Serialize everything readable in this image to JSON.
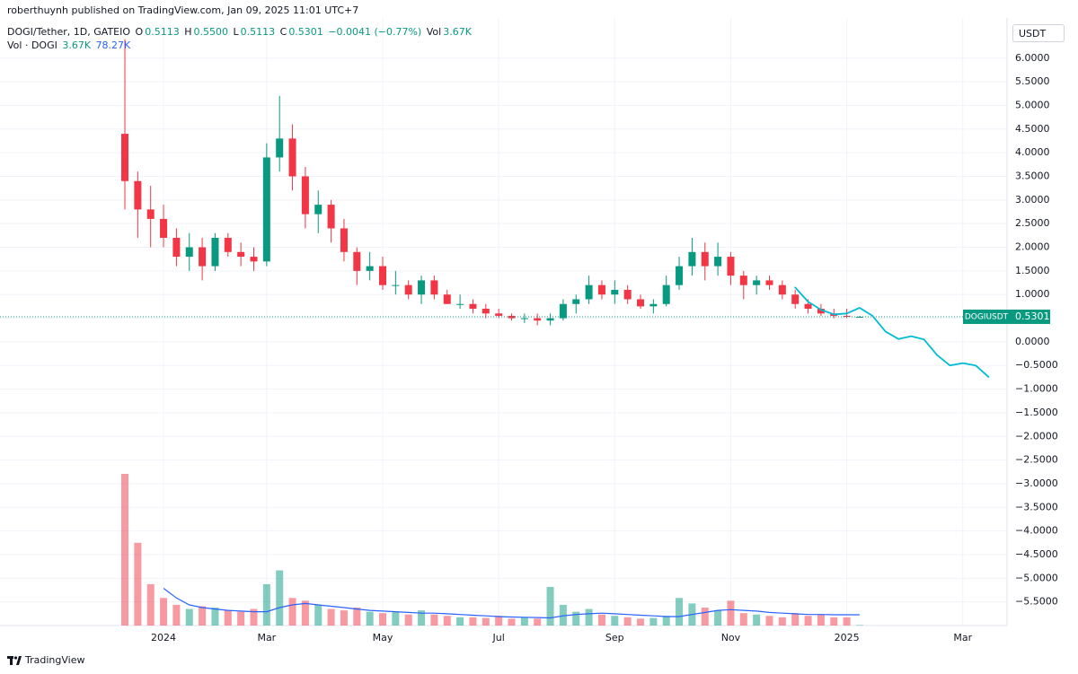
{
  "header": {
    "publisher": "roberthuynh published on TradingView.com, Jan 09, 2025 11:01 UTC+7",
    "symbol": "DOGI/Tether, 1D, GATEIO",
    "o_key": "O",
    "o": "0.5113",
    "h_key": "H",
    "h": "0.5500",
    "l_key": "L",
    "l": "0.5113",
    "c_key": "C",
    "c": "0.5301",
    "change": "−0.0041 (−0.77%)",
    "vol_key": "Vol",
    "vol": "3.67K",
    "vol_row_name": "Vol · DOGI",
    "vol_row_value": "3.67K",
    "vol_row_ma": "78.27K",
    "currency": "USDT",
    "brand": "TradingView"
  },
  "chart_data": {
    "type": "candlestick",
    "categories": [
      null,
      null,
      null,
      "2024",
      null,
      null,
      null,
      null,
      null,
      null,
      null,
      "Mar",
      null,
      null,
      null,
      null,
      null,
      null,
      null,
      null,
      "May",
      null,
      null,
      null,
      null,
      null,
      null,
      null,
      null,
      "Jul",
      null,
      null,
      null,
      null,
      null,
      null,
      null,
      null,
      "Sep",
      null,
      null,
      null,
      null,
      null,
      null,
      null,
      null,
      "Nov",
      null,
      null,
      null,
      null,
      null,
      null,
      null,
      null,
      "2025",
      null,
      null,
      null,
      null,
      null,
      null,
      null,
      null,
      "Mar",
      null,
      null,
      null
    ],
    "ohlc": {
      "up_color": "#089981",
      "down_color": "#f23645",
      "open": [
        4.4,
        3.4,
        2.8,
        2.6,
        2.2,
        1.8,
        2.0,
        1.6,
        2.2,
        1.9,
        1.8,
        1.7,
        3.9,
        4.3,
        3.5,
        2.7,
        2.9,
        2.4,
        1.9,
        1.5,
        1.6,
        1.2,
        1.2,
        1.0,
        1.3,
        1.0,
        0.8,
        0.8,
        0.7,
        0.6,
        0.55,
        0.5,
        0.5,
        0.45,
        0.5,
        0.8,
        0.9,
        1.2,
        1.0,
        1.1,
        0.9,
        0.75,
        0.8,
        1.2,
        1.6,
        1.9,
        1.6,
        1.8,
        1.4,
        1.2,
        1.3,
        1.2,
        1.0,
        0.8,
        0.7,
        0.6,
        0.55,
        0.5113,
        null,
        null,
        null,
        null,
        null,
        null,
        null,
        null,
        null,
        null,
        null
      ],
      "high": [
        6.4,
        3.6,
        3.3,
        2.9,
        2.4,
        2.3,
        2.2,
        2.3,
        2.3,
        2.1,
        2.0,
        4.2,
        5.2,
        4.6,
        3.7,
        3.2,
        3.0,
        2.6,
        2.0,
        1.9,
        1.8,
        1.5,
        1.3,
        1.4,
        1.4,
        1.1,
        1.0,
        0.9,
        0.8,
        0.7,
        0.6,
        0.6,
        0.6,
        0.6,
        0.9,
        1.0,
        1.4,
        1.3,
        1.3,
        1.2,
        1.0,
        0.9,
        1.4,
        1.8,
        2.2,
        2.1,
        2.1,
        1.9,
        1.5,
        1.4,
        1.4,
        1.3,
        1.1,
        0.9,
        0.8,
        0.7,
        0.7,
        0.55,
        null,
        null,
        null,
        null,
        null,
        null,
        null,
        null,
        null,
        null,
        null
      ],
      "low": [
        2.8,
        2.2,
        2.0,
        2.0,
        1.6,
        1.5,
        1.3,
        1.5,
        1.8,
        1.6,
        1.5,
        1.6,
        3.6,
        3.2,
        2.4,
        2.3,
        2.1,
        1.7,
        1.2,
        1.3,
        1.1,
        1.0,
        0.9,
        0.8,
        0.9,
        0.8,
        0.7,
        0.6,
        0.5,
        0.5,
        0.45,
        0.4,
        0.35,
        0.35,
        0.45,
        0.6,
        0.8,
        0.9,
        0.8,
        0.8,
        0.7,
        0.6,
        0.75,
        1.1,
        1.4,
        1.3,
        1.4,
        1.2,
        0.9,
        1.0,
        1.1,
        0.9,
        0.7,
        0.6,
        0.55,
        0.5,
        0.5,
        0.5113,
        null,
        null,
        null,
        null,
        null,
        null,
        null,
        null,
        null,
        null,
        null
      ],
      "close": [
        3.4,
        2.8,
        2.6,
        2.2,
        1.8,
        2.0,
        1.6,
        2.2,
        1.9,
        1.8,
        1.7,
        3.9,
        4.3,
        3.5,
        2.7,
        2.9,
        2.4,
        1.9,
        1.5,
        1.6,
        1.2,
        1.2,
        1.0,
        1.3,
        1.0,
        0.8,
        0.8,
        0.7,
        0.6,
        0.55,
        0.5,
        0.5,
        0.45,
        0.5,
        0.8,
        0.9,
        1.2,
        1.0,
        1.1,
        0.9,
        0.75,
        0.8,
        1.2,
        1.6,
        1.9,
        1.6,
        1.8,
        1.4,
        1.2,
        1.3,
        1.2,
        1.0,
        0.8,
        0.7,
        0.6,
        0.55,
        0.53,
        0.5301,
        null,
        null,
        null,
        null,
        null,
        null,
        null,
        null,
        null,
        null,
        null
      ]
    },
    "volume": {
      "values": [
        1100,
        600,
        300,
        200,
        150,
        120,
        140,
        130,
        110,
        100,
        120,
        300,
        400,
        200,
        180,
        150,
        120,
        110,
        130,
        100,
        90,
        100,
        80,
        110,
        80,
        70,
        60,
        60,
        55,
        70,
        50,
        60,
        50,
        280,
        150,
        100,
        120,
        80,
        70,
        60,
        50,
        55,
        70,
        200,
        160,
        130,
        110,
        180,
        90,
        80,
        70,
        60,
        90,
        70,
        80,
        60,
        60,
        3.67,
        null,
        null,
        null,
        null,
        null,
        null,
        null,
        null,
        null,
        null,
        null
      ],
      "ylim": [
        0,
        1100
      ],
      "ma": [
        null,
        null,
        null,
        270,
        200,
        150,
        130,
        120,
        110,
        105,
        100,
        100,
        130,
        150,
        160,
        150,
        140,
        130,
        120,
        110,
        105,
        100,
        95,
        90,
        90,
        85,
        80,
        75,
        70,
        65,
        62,
        60,
        58,
        55,
        70,
        80,
        85,
        90,
        85,
        80,
        75,
        70,
        65,
        65,
        80,
        95,
        110,
        115,
        110,
        105,
        95,
        90,
        85,
        80,
        80,
        78,
        78,
        78.27,
        null,
        null,
        null,
        null,
        null,
        null,
        null,
        null,
        null,
        null,
        null
      ],
      "ma_color": "#2962ff"
    },
    "projection": {
      "color": "#00bcd4",
      "values": [
        null,
        null,
        null,
        null,
        null,
        null,
        null,
        null,
        null,
        null,
        null,
        null,
        null,
        null,
        null,
        null,
        null,
        null,
        null,
        null,
        null,
        null,
        null,
        null,
        null,
        null,
        null,
        null,
        null,
        null,
        null,
        null,
        null,
        null,
        null,
        null,
        null,
        null,
        null,
        null,
        null,
        null,
        null,
        null,
        null,
        null,
        null,
        null,
        null,
        null,
        null,
        null,
        1.15,
        0.85,
        0.68,
        0.58,
        0.6,
        0.72,
        0.55,
        0.22,
        0.06,
        0.12,
        0.05,
        -0.28,
        -0.5,
        -0.45,
        -0.5,
        -0.74,
        null
      ]
    },
    "last_price": {
      "name": "DOGIUSDT",
      "value": 0.5301,
      "color": "#089981"
    },
    "ylim": [
      -6.0,
      6.85
    ],
    "yticks": [
      {
        "value": 6,
        "label": "6.0000"
      },
      {
        "value": 5.5,
        "label": "5.5000"
      },
      {
        "value": 5,
        "label": "5.0000"
      },
      {
        "value": 4.5,
        "label": "4.5000"
      },
      {
        "value": 4,
        "label": "4.0000"
      },
      {
        "value": 3.5,
        "label": "3.5000"
      },
      {
        "value": 3,
        "label": "3.0000"
      },
      {
        "value": 2.5,
        "label": "2.5000"
      },
      {
        "value": 2,
        "label": "2.0000"
      },
      {
        "value": 1.5,
        "label": "1.5000"
      },
      {
        "value": 1,
        "label": "1.0000"
      },
      {
        "value": 0.5,
        "label": "0.5000"
      },
      {
        "value": 0,
        "label": "0.0000"
      },
      {
        "value": -0.5,
        "label": "−0.5000"
      },
      {
        "value": -1,
        "label": "−1.0000"
      },
      {
        "value": -1.5,
        "label": "−1.5000"
      },
      {
        "value": -2,
        "label": "−2.0000"
      },
      {
        "value": -2.5,
        "label": "−2.5000"
      },
      {
        "value": -3,
        "label": "−3.0000"
      },
      {
        "value": -3.5,
        "label": "−3.5000"
      },
      {
        "value": -4,
        "label": "−4.0000"
      },
      {
        "value": -4.5,
        "label": "−4.5000"
      },
      {
        "value": -5,
        "label": "−5.0000"
      },
      {
        "value": -5.5,
        "label": "−5.5000"
      }
    ],
    "grid": true
  }
}
